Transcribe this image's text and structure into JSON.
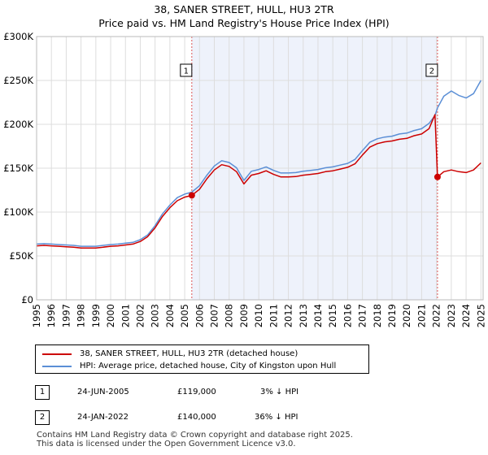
{
  "title_line1": "38, SANER STREET, HULL, HU3 2TR",
  "title_line2": "Price paid vs. HM Land Registry's House Price Index (HPI)",
  "colors": {
    "property": "#cc0000",
    "hpi": "#5b8fd6",
    "shade": "#eef2fb",
    "grid": "#dddddd"
  },
  "chart_data": {
    "type": "line",
    "xlim": [
      1995,
      2025.15
    ],
    "ylim": [
      0,
      300000
    ],
    "y_ticks": [
      {
        "value": 0,
        "label": "£0"
      },
      {
        "value": 50000,
        "label": "£50K"
      },
      {
        "value": 100000,
        "label": "£100K"
      },
      {
        "value": 150000,
        "label": "£150K"
      },
      {
        "value": 200000,
        "label": "£200K"
      },
      {
        "value": 250000,
        "label": "£250K"
      },
      {
        "value": 300000,
        "label": "£300K"
      }
    ],
    "x_ticks": [
      1995,
      1996,
      1997,
      1998,
      1999,
      2000,
      2001,
      2002,
      2003,
      2004,
      2005,
      2006,
      2007,
      2008,
      2009,
      2010,
      2011,
      2012,
      2013,
      2014,
      2015,
      2016,
      2017,
      2018,
      2019,
      2020,
      2021,
      2022,
      2023,
      2024,
      2025
    ],
    "shaded_range": [
      2005.48,
      2022.07
    ],
    "series": [
      {
        "name": "38, SANER STREET, HULL, HU3 2TR (detached house)",
        "x": [
          1995,
          1995.5,
          1996,
          1996.5,
          1997,
          1997.5,
          1998,
          1998.5,
          1999,
          1999.5,
          2000,
          2000.5,
          2001,
          2001.5,
          2002,
          2002.5,
          2003,
          2003.5,
          2004,
          2004.5,
          2005,
          2005.48,
          2006,
          2006.5,
          2007,
          2007.5,
          2008,
          2008.5,
          2009,
          2009.5,
          2010,
          2010.5,
          2011,
          2011.5,
          2012,
          2012.5,
          2013,
          2013.5,
          2014,
          2014.5,
          2015,
          2015.5,
          2016,
          2016.5,
          2017,
          2017.5,
          2018,
          2018.5,
          2019,
          2019.5,
          2020,
          2020.5,
          2021,
          2021.5,
          2021.9,
          2022.07,
          2022.5,
          2023,
          2023.5,
          2024,
          2024.5,
          2025
        ],
        "y": [
          61500,
          62000,
          61500,
          61000,
          60500,
          60000,
          59000,
          59000,
          59000,
          60000,
          61000,
          61500,
          62500,
          63500,
          66500,
          72000,
          82000,
          95000,
          105000,
          113000,
          117000,
          119000,
          126000,
          138000,
          148000,
          154000,
          152000,
          146000,
          132000,
          142000,
          144000,
          147000,
          143000,
          140000,
          140000,
          140500,
          142000,
          143000,
          144000,
          146000,
          147000,
          149000,
          151000,
          155000,
          165000,
          174000,
          178000,
          180000,
          181000,
          183000,
          184000,
          187000,
          189000,
          195000,
          211000,
          140000,
          146000,
          148000,
          146000,
          145000,
          148000,
          156000
        ]
      },
      {
        "name": "HPI: Average price, detached house, City of Kingston upon Hull",
        "x": [
          1995,
          1995.5,
          1996,
          1996.5,
          1997,
          1997.5,
          1998,
          1998.5,
          1999,
          1999.5,
          2000,
          2000.5,
          2001,
          2001.5,
          2002,
          2002.5,
          2003,
          2003.5,
          2004,
          2004.5,
          2005,
          2005.48,
          2006,
          2006.5,
          2007,
          2007.5,
          2008,
          2008.5,
          2009,
          2009.5,
          2010,
          2010.5,
          2011,
          2011.5,
          2012,
          2012.5,
          2013,
          2013.5,
          2014,
          2014.5,
          2015,
          2015.5,
          2016,
          2016.5,
          2017,
          2017.5,
          2018,
          2018.5,
          2019,
          2019.5,
          2020,
          2020.5,
          2021,
          2021.5,
          2021.9,
          2022.07,
          2022.5,
          2023,
          2023.5,
          2024,
          2024.5,
          2025
        ],
        "y": [
          63500,
          64000,
          63500,
          63000,
          62500,
          62000,
          61000,
          61000,
          61000,
          62000,
          63000,
          63500,
          64500,
          65500,
          68500,
          74000,
          84500,
          98000,
          108000,
          116500,
          120500,
          122700,
          130000,
          142000,
          152500,
          158500,
          156500,
          150500,
          136000,
          146500,
          148500,
          151500,
          147500,
          144500,
          144500,
          145000,
          146500,
          147500,
          148500,
          150500,
          151500,
          153500,
          155500,
          160000,
          170000,
          179500,
          183500,
          185500,
          186500,
          189000,
          190000,
          193000,
          195000,
          201000,
          210000,
          218700,
          232000,
          238000,
          233000,
          230000,
          235000,
          250000
        ]
      }
    ],
    "sales": [
      {
        "marker": "1",
        "x": 2005.48,
        "y": 119000
      },
      {
        "marker": "2",
        "x": 2022.07,
        "y": 140000
      }
    ]
  },
  "legend": {
    "property_label": "38, SANER STREET, HULL, HU3 2TR (detached house)",
    "hpi_label": "HPI: Average price, detached house, City of Kingston upon Hull"
  },
  "transactions": [
    {
      "marker": "1",
      "date": "24-JUN-2005",
      "price": "£119,000",
      "hpi_diff": "3% ↓ HPI"
    },
    {
      "marker": "2",
      "date": "24-JAN-2022",
      "price": "£140,000",
      "hpi_diff": "36% ↓ HPI"
    }
  ],
  "footer_line1": "Contains HM Land Registry data © Crown copyright and database right 2025.",
  "footer_line2": "This data is licensed under the Open Government Licence v3.0."
}
